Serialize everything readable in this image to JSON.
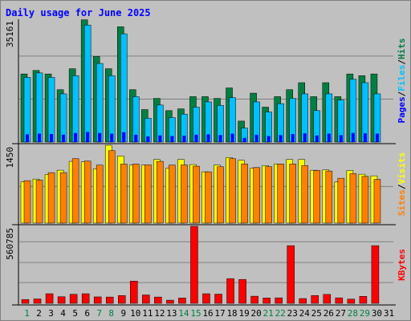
{
  "chart_data": {
    "type": "bar",
    "title": "Daily usage for June 2025",
    "x": [
      "1",
      "2",
      "3",
      "4",
      "5",
      "6",
      "7",
      "8",
      "9",
      "10",
      "11",
      "12",
      "13",
      "14",
      "15",
      "16",
      "17",
      "18",
      "19",
      "20",
      "21",
      "22",
      "23",
      "24",
      "25",
      "26",
      "27",
      "28",
      "29",
      "30",
      "31"
    ],
    "weekend_days": [
      "1",
      "7",
      "8",
      "14",
      "15",
      "21",
      "22",
      "28",
      "29"
    ],
    "panels": [
      {
        "name": "hits-files-pages",
        "max_label": "35161",
        "ylim": [
          0,
          35161
        ],
        "series": [
          {
            "name": "Hits",
            "color": "#008040",
            "values": [
              19500,
              20500,
              19500,
              15000,
              21000,
              35000,
              24500,
              21000,
              33000,
              15000,
              9300,
              12500,
              9000,
              9500,
              13000,
              13000,
              12500,
              15500,
              6000,
              14000,
              10000,
              13000,
              15000,
              17000,
              13000,
              17000,
              13000,
              19500,
              19000,
              19500,
              0
            ]
          },
          {
            "name": "Files",
            "color": "#00c0ff",
            "values": [
              18500,
              19800,
              18500,
              13800,
              19000,
              33500,
              22500,
              19000,
              31000,
              13000,
              6800,
              10600,
              7000,
              8000,
              10000,
              11500,
              10500,
              12700,
              4000,
              11500,
              8600,
              11000,
              12500,
              13800,
              9000,
              13800,
              12000,
              18000,
              17000,
              13800,
              0
            ]
          },
          {
            "name": "Pages",
            "color": "#0000ff",
            "values": [
              2200,
              2400,
              2300,
              2100,
              2600,
              2900,
              2600,
              2400,
              2800,
              2100,
              1600,
              1900,
              1700,
              1800,
              2100,
              2200,
              2000,
              2400,
              1200,
              2100,
              1700,
              2000,
              2300,
              2500,
              1900,
              2400,
              2000,
              2600,
              2500,
              2400,
              0
            ]
          }
        ]
      },
      {
        "name": "visits-sites",
        "max_label": "1450",
        "ylim": [
          0,
          1450
        ],
        "series": [
          {
            "name": "Visits",
            "color": "#ffff00",
            "values": [
              770,
              820,
              905,
              985,
              1150,
              1140,
              1010,
              1450,
              1250,
              1080,
              1080,
              1185,
              1020,
              1185,
              1090,
              955,
              1080,
              1220,
              1170,
              1020,
              1070,
              1100,
              1185,
              1185,
              985,
              990,
              765,
              980,
              910,
              880,
              0
            ]
          },
          {
            "name": "Sites",
            "color": "#ff8000",
            "values": [
              790,
              800,
              940,
              940,
              1200,
              1155,
              1080,
              1350,
              1100,
              1100,
              1085,
              1150,
              1080,
              1085,
              1060,
              955,
              1050,
              1200,
              1100,
              1035,
              1050,
              1100,
              1100,
              1070,
              980,
              970,
              835,
              920,
              870,
              815,
              0
            ]
          }
        ]
      },
      {
        "name": "kbytes",
        "max_label": "560785",
        "ylim": [
          0,
          560785
        ],
        "series": [
          {
            "name": "KBytes",
            "color": "#ff0000",
            "values": [
              28000,
              32000,
              70000,
              48000,
              66000,
              70000,
              47000,
              46000,
              57000,
              162000,
              61000,
              46000,
              23000,
              39000,
              560785,
              70000,
              67000,
              180000,
              174000,
              52000,
              39000,
              40000,
              420000,
              35000,
              57000,
              65000,
              40000,
              31000,
              51000,
              420000,
              0
            ]
          }
        ]
      }
    ],
    "side_labels": [
      [
        "Pages",
        "/",
        "Files",
        "/",
        "Hits"
      ],
      [
        "Sites",
        "/",
        "Visits"
      ],
      [
        "KBytes"
      ]
    ],
    "colors": {
      "background": "#c0c0c0",
      "grid": "#808080",
      "title": "#0000ff",
      "weekend_label": "#008040",
      "weekday_label": "#000000",
      "separator": "#000000"
    }
  }
}
